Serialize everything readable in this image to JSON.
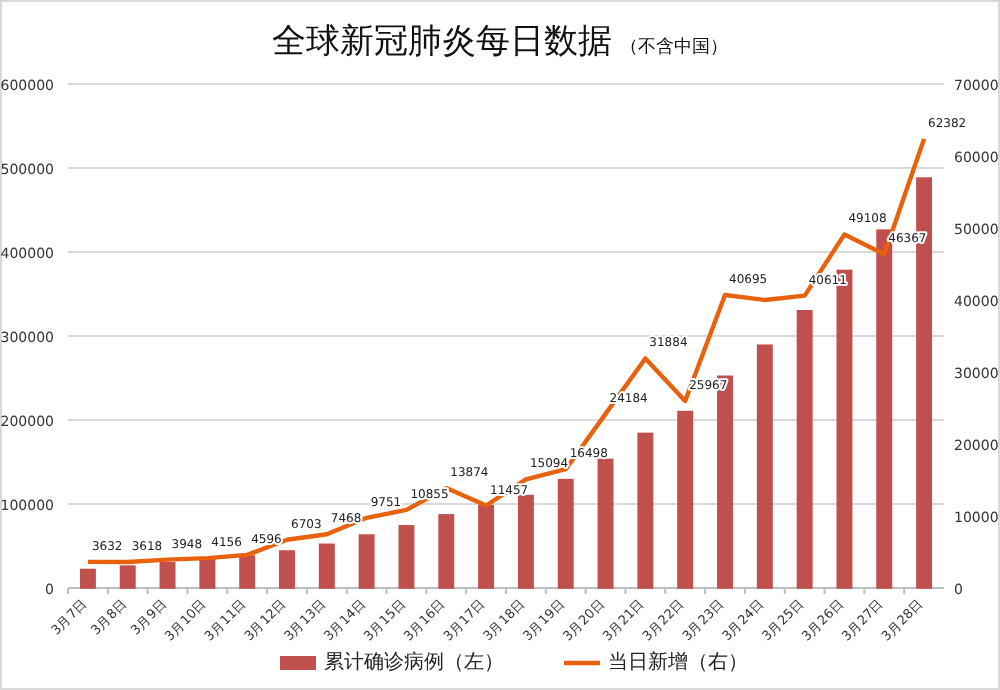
{
  "chart_data": {
    "type": "bar",
    "title": "全球新冠肺炎每日数据",
    "subtitle": "（不含中国）",
    "categories": [
      "3月7日",
      "3月8日",
      "3月9日",
      "3月10日",
      "3月11日",
      "3月12日",
      "3月13日",
      "3月14日",
      "3月15日",
      "3月16日",
      "3月17日",
      "3月18日",
      "3月19日",
      "3月20日",
      "3月21日",
      "3月22日",
      "3月23日",
      "3月24日",
      "3月25日",
      "3月26日",
      "3月27日",
      "3月28日"
    ],
    "series": [
      {
        "name": "累计确诊病例（左）",
        "color": "#c0504d",
        "values": [
          22000,
          26000,
          30000,
          34000,
          38000,
          44000,
          52000,
          63000,
          74000,
          87000,
          98000,
          110000,
          129000,
          153000,
          184000,
          210000,
          252000,
          289000,
          330000,
          378000,
          426000,
          488000
        ]
      },
      {
        "name": "当日新增（右）",
        "type": "line",
        "axis": "y2",
        "color": "#e8620e",
        "values": [
          3632,
          3618,
          3948,
          4156,
          4596,
          6703,
          7468,
          9751,
          10855,
          13874,
          11457,
          15094,
          16498,
          24184,
          31884,
          25967,
          40695,
          40000,
          40611,
          49108,
          46367,
          62382
        ],
        "value_labels": [
          "3632",
          "3618",
          "3948",
          "4156",
          "4596",
          "6703",
          "7468",
          "9751",
          "10855",
          "13874",
          "11457",
          "15094",
          "16498",
          "24184",
          "31884",
          "25967",
          "40695",
          null,
          "40611",
          "49108",
          "46367",
          "62382"
        ]
      }
    ],
    "ylim": [
      0,
      600000
    ],
    "yticks": [
      0,
      100000,
      200000,
      300000,
      400000,
      500000,
      600000
    ],
    "y2lim": [
      0,
      70000
    ],
    "y2ticks": [
      0,
      10000,
      20000,
      30000,
      40000,
      50000,
      60000,
      70000
    ],
    "grid": "y",
    "legend": "bottom",
    "marker": "none"
  }
}
